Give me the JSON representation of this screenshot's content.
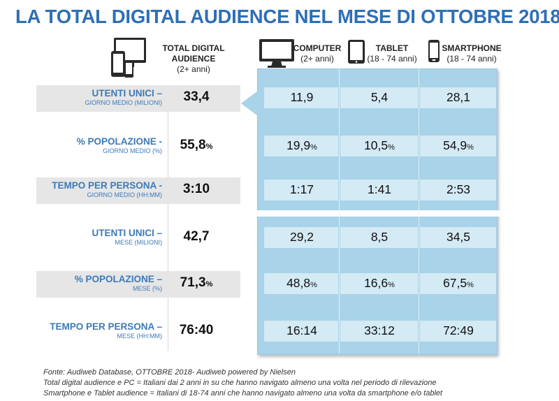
{
  "title": "LA TOTAL DIGITAL AUDIENCE NEL MESE DI OTTOBRE 2018",
  "columns": {
    "total": {
      "line1": "TOTAL DIGITAL",
      "line2": "AUDIENCE",
      "sub": "(2+ anni)",
      "icon": "multi-device-icon"
    },
    "computer": {
      "label": "COMPUTER",
      "sub": "(2+ anni)",
      "icon": "monitor-icon"
    },
    "tablet": {
      "label": "TABLET",
      "sub": "(18 - 74 anni)",
      "icon": "tablet-icon"
    },
    "smartphone": {
      "label": "SMARTPHONE",
      "sub": "(18 - 74 anni)",
      "icon": "smartphone-icon"
    }
  },
  "chart_data": {
    "type": "table",
    "title": "LA TOTAL DIGITAL AUDIENCE NEL MESE DI OTTOBRE 2018",
    "column_headers": [
      "TOTAL DIGITAL AUDIENCE (2+ anni)",
      "COMPUTER (2+ anni)",
      "TABLET (18 - 74 anni)",
      "SMARTPHONE (18 - 74 anni)"
    ],
    "rows": [
      {
        "label": "UTENTI UNICI –",
        "sublabel": "GIORNO MEDIO (MILIONI)",
        "unit": "",
        "total": "33,4",
        "computer": "11,9",
        "tablet": "5,4",
        "smartphone": "28,1"
      },
      {
        "label": "% POPOLAZIONE -",
        "sublabel": "GIORNO MEDIO (%)",
        "unit": "%",
        "total": "55,8",
        "computer": "19,9",
        "tablet": "10,5",
        "smartphone": "54,9"
      },
      {
        "label": "TEMPO PER PERSONA -",
        "sublabel": "GIORNO MEDIO (HH:MM)",
        "unit": "",
        "total": "3:10",
        "computer": "1:17",
        "tablet": "1:41",
        "smartphone": "2:53"
      },
      {
        "label": "UTENTI UNICI –",
        "sublabel": "MESE (MILIONI)",
        "unit": "",
        "total": "42,7",
        "computer": "29,2",
        "tablet": "8,5",
        "smartphone": "34,5"
      },
      {
        "label": "% POPOLAZIONE –",
        "sublabel": "MESE (%)",
        "unit": "%",
        "total": "71,3",
        "computer": "48,8",
        "tablet": "16,6",
        "smartphone": "67,5"
      },
      {
        "label": "TEMPO PER PERSONA –",
        "sublabel": "MESE (HH:MM)",
        "unit": "",
        "total": "76:40",
        "computer": "16:14",
        "tablet": "33:12",
        "smartphone": "72:49"
      }
    ]
  },
  "footnotes": [
    "Fonte: Audiweb Database, OTTOBRE 2018- Audiweb powered by Nielsen",
    "Total digital audience e PC = Italiani dai 2 anni in su che hanno navigato almeno una volta nel periodo di rilevazione",
    "Smartphone e Tablet audience = Italiani di 18-74 anni che hanno navigato almeno una volta da smartphone e/o tablet"
  ],
  "colors": {
    "title": "#2e6fb5",
    "label": "#3c7ab8",
    "panel": "#a8d3e8",
    "cell": "#d4eaf5",
    "band": "#e6e6e6"
  }
}
